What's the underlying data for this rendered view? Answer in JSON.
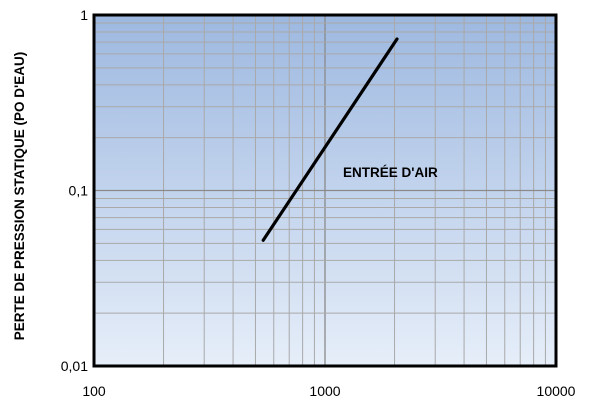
{
  "chart_data": {
    "type": "line",
    "title": "",
    "xlabel": "",
    "ylabel": "PERTE DE PRESSION STATIQUE (PO D'EAU)",
    "x_scale": "log",
    "y_scale": "log",
    "xlim": [
      100,
      10000
    ],
    "ylim": [
      0.01,
      1
    ],
    "x_ticks": [
      "100",
      "1000",
      "10000"
    ],
    "y_ticks": [
      "0,01",
      "0,1",
      "1"
    ],
    "grid": true,
    "background_gradient": [
      "#9db8e0",
      "#e6eef9"
    ],
    "line_color": "#000000",
    "series": [
      {
        "name": "ENTRÉE D'AIR",
        "x": [
          540,
          2050
        ],
        "y": [
          0.052,
          0.73
        ]
      }
    ]
  }
}
